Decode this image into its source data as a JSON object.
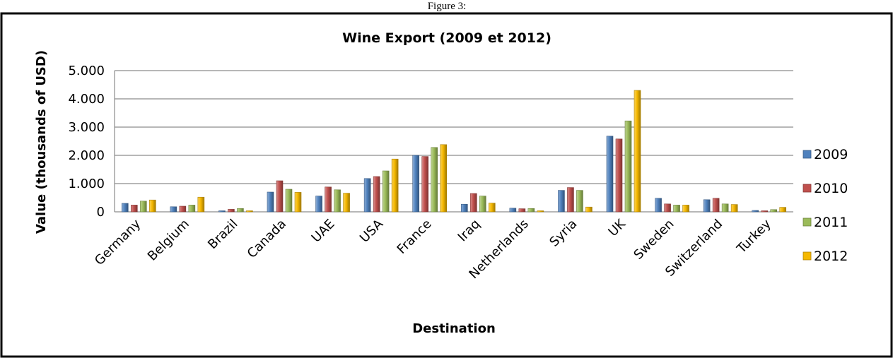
{
  "caption": "Figure 3:",
  "chart_data": {
    "type": "bar",
    "title": "Wine Export (2009 et 2012)",
    "xlabel": "Destination",
    "ylabel": "Value (thousands of USD)",
    "ylim": [
      0,
      5000
    ],
    "yticks": [
      0,
      1000,
      2000,
      3000,
      4000,
      5000
    ],
    "ytick_labels": [
      "0",
      "1.000",
      "2.000",
      "3.000",
      "4.000",
      "5.000"
    ],
    "grid": true,
    "legend_position": "right",
    "categories": [
      "Germany",
      "Belgium",
      "Brazil",
      "Canada",
      "UAE",
      "USA",
      "France",
      "Iraq",
      "Netherlands",
      "Syria",
      "UK",
      "Sweden",
      "Switzerland",
      "Turkey"
    ],
    "series": [
      {
        "name": "2009",
        "color": "#4F81BD",
        "values": [
          300,
          180,
          20,
          700,
          560,
          1180,
          2000,
          270,
          130,
          760,
          2680,
          480,
          430,
          50
        ]
      },
      {
        "name": "2010",
        "color": "#C0504D",
        "values": [
          240,
          200,
          90,
          1100,
          880,
          1250,
          1960,
          650,
          110,
          860,
          2580,
          280,
          480,
          30
        ]
      },
      {
        "name": "2011",
        "color": "#9BBB59",
        "values": [
          380,
          240,
          120,
          800,
          780,
          1450,
          2280,
          560,
          120,
          760,
          3220,
          240,
          280,
          80
        ]
      },
      {
        "name": "2012",
        "color": "#F5B800",
        "values": [
          420,
          520,
          30,
          690,
          660,
          1870,
          2380,
          310,
          20,
          170,
          4300,
          240,
          260,
          160
        ]
      }
    ]
  }
}
